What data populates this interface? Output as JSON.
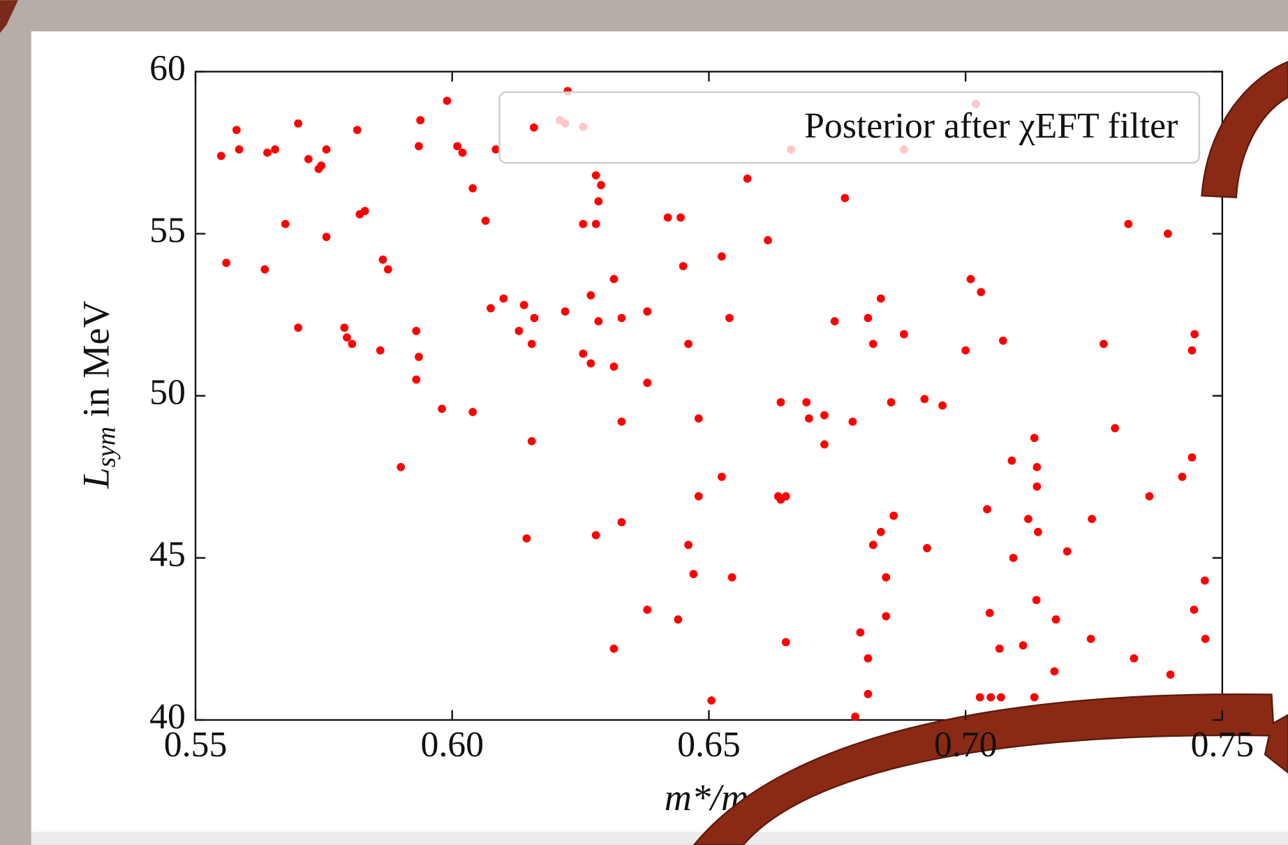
{
  "chart_data": {
    "type": "scatter",
    "xlabel": "m*/m",
    "ylabel": [
      "L",
      "sym",
      " in MeV"
    ],
    "xlim": [
      0.55,
      0.75
    ],
    "ylim": [
      40,
      60
    ],
    "xticks": [
      {
        "value": 0.55,
        "label": "0.55"
      },
      {
        "value": 0.6,
        "label": "0.60"
      },
      {
        "value": 0.65,
        "label": "0.65"
      },
      {
        "value": 0.7,
        "label": "0.70"
      },
      0.75
    ],
    "yticks": [
      40,
      45,
      50,
      55,
      60
    ],
    "legend": "upper right",
    "x": [
      0.555,
      0.558,
      0.5585,
      0.556,
      0.564,
      0.5655,
      0.5675,
      0.5635,
      0.57,
      0.572,
      0.574,
      0.5745,
      0.5755,
      0.5755,
      0.57,
      0.5815,
      0.582,
      0.583,
      0.5865,
      0.5875,
      0.579,
      0.5795,
      0.5805,
      0.586,
      0.59,
      0.593,
      0.5935,
      0.593,
      0.5938,
      0.5935,
      0.599,
      0.601,
      0.602,
      0.598,
      0.604,
      0.604,
      0.6065,
      0.6085,
      0.6075,
      0.61,
      0.613,
      0.614,
      0.616,
      0.6155,
      0.6155,
      0.6145,
      0.622,
      0.622,
      0.6225,
      0.6255,
      0.666,
      0.688,
      0.702,
      0.621,
      0.6255,
      0.628,
      0.628,
      0.629,
      0.6285,
      0.627,
      0.6285,
      0.6255,
      0.627,
      0.6315,
      0.633,
      0.6315,
      0.633,
      0.633,
      0.628,
      0.6315,
      0.638,
      0.638,
      0.638,
      0.642,
      0.6445,
      0.645,
      0.646,
      0.648,
      0.648,
      0.646,
      0.647,
      0.644,
      0.6505,
      0.6525,
      0.654,
      0.6525,
      0.6545,
      0.6575,
      0.6615,
      0.664,
      0.6635,
      0.664,
      0.665,
      0.665,
      0.669,
      0.6695,
      0.6725,
      0.6725,
      0.6745,
      0.6765,
      0.678,
      0.6795,
      0.681,
      0.681,
      0.6785,
      0.681,
      0.682,
      0.6835,
      0.688,
      0.6855,
      0.682,
      0.6835,
      0.686,
      0.6845,
      0.6845,
      0.692,
      0.6955,
      0.6925,
      0.701,
      0.703,
      0.7,
      0.7073,
      0.7042,
      0.7047,
      0.7028,
      0.7049,
      0.7069,
      0.7066,
      0.7093,
      0.709,
      0.7134,
      0.7139,
      0.7139,
      0.7122,
      0.7141,
      0.7112,
      0.7138,
      0.7134,
      0.7176,
      0.7173,
      0.7198,
      0.7246,
      0.7244,
      0.7269,
      0.7291,
      0.7317,
      0.7328,
      0.7358,
      0.7394,
      0.7399,
      0.7422,
      0.7441,
      0.7446,
      0.7441,
      0.7445,
      0.7466,
      0.7467
    ],
    "series": [
      {
        "name": "Posterior after χEFT filter",
        "color": "#ff0000",
        "values": [
          57.4,
          58.2,
          57.6,
          54.1,
          57.5,
          57.6,
          55.3,
          53.9,
          58.4,
          57.3,
          57.0,
          57.1,
          57.6,
          54.9,
          52.1,
          58.2,
          55.6,
          55.7,
          54.2,
          53.9,
          52.1,
          51.8,
          51.6,
          51.4,
          47.8,
          52.0,
          51.2,
          50.5,
          58.5,
          57.7,
          59.1,
          57.7,
          57.5,
          49.6,
          56.4,
          49.5,
          55.4,
          57.6,
          52.7,
          53.0,
          52.0,
          52.8,
          52.4,
          51.6,
          48.6,
          45.6,
          52.6,
          58.4,
          59.4,
          58.3,
          57.6,
          57.6,
          59.0,
          58.5,
          55.3,
          55.3,
          56.8,
          56.5,
          56.0,
          53.1,
          52.3,
          51.3,
          51.0,
          53.6,
          52.4,
          50.9,
          49.2,
          46.1,
          45.7,
          42.2,
          52.6,
          50.4,
          43.4,
          55.5,
          55.5,
          54.0,
          51.6,
          49.3,
          46.9,
          45.4,
          44.5,
          43.1,
          40.6,
          54.3,
          52.4,
          47.5,
          44.4,
          56.7,
          54.8,
          49.8,
          46.9,
          46.8,
          46.9,
          42.4,
          49.8,
          49.3,
          49.4,
          48.5,
          52.3,
          56.1,
          49.2,
          42.7,
          41.9,
          40.8,
          40.1,
          52.4,
          51.6,
          53.0,
          51.9,
          49.8,
          45.4,
          45.8,
          46.3,
          44.4,
          43.2,
          49.9,
          49.7,
          45.3,
          53.6,
          53.2,
          51.4,
          51.7,
          46.5,
          43.3,
          40.7,
          40.7,
          40.7,
          42.2,
          45.0,
          48.0,
          48.7,
          47.8,
          47.2,
          46.2,
          45.8,
          42.3,
          43.7,
          40.7,
          43.1,
          41.5,
          45.2,
          46.2,
          42.5,
          51.6,
          49.0,
          55.3,
          41.9,
          46.9,
          55.0,
          41.4,
          47.5,
          48.1,
          51.9,
          51.4,
          43.4,
          44.3,
          42.5
        ]
      }
    ]
  }
}
